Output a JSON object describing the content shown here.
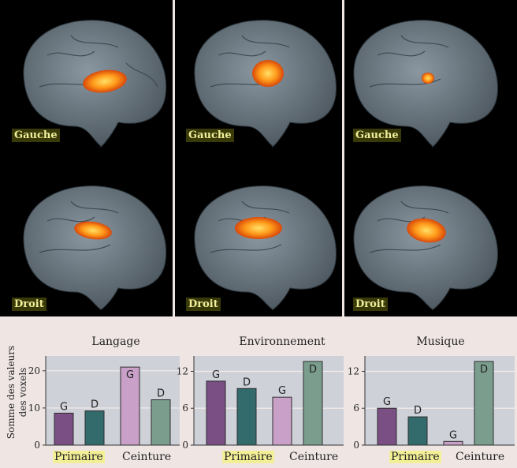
{
  "panels": [
    {
      "column": "1",
      "top_label": "Gauche",
      "bottom_label": "Droit"
    },
    {
      "column": "2",
      "top_label": "Gauche",
      "bottom_label": "Droit"
    },
    {
      "column": "3",
      "top_label": "Gauche",
      "bottom_label": "Droit"
    }
  ],
  "y_axis_label_line1": "Somme des valeurs",
  "y_axis_label_line2": "des voxels",
  "chart_data": [
    {
      "type": "bar",
      "title": "Langage",
      "ylabel": "Somme des valeurs des voxels",
      "ylim": [
        0,
        24
      ],
      "yticks": [
        0,
        10,
        20
      ],
      "group_labels": [
        "Primaire",
        "Ceinture"
      ],
      "bars": [
        {
          "group": "Primaire",
          "hemisphere": "G",
          "value": 8.6,
          "color": "#7a4f84"
        },
        {
          "group": "Primaire",
          "hemisphere": "D",
          "value": 9.2,
          "color": "#336b6c"
        },
        {
          "group": "Ceinture",
          "hemisphere": "G",
          "value": 21.0,
          "color": "#c9a0c8"
        },
        {
          "group": "Ceinture",
          "hemisphere": "D",
          "value": 12.2,
          "color": "#7a9d8d"
        }
      ]
    },
    {
      "type": "bar",
      "title": "Environnement",
      "ylabel": "Somme des valeurs des voxels",
      "ylim": [
        0,
        14.5
      ],
      "yticks": [
        0,
        6,
        12
      ],
      "group_labels": [
        "Primaire",
        "Ceinture"
      ],
      "bars": [
        {
          "group": "Primaire",
          "hemisphere": "G",
          "value": 10.4,
          "color": "#7a4f84"
        },
        {
          "group": "Primaire",
          "hemisphere": "D",
          "value": 9.2,
          "color": "#336b6c"
        },
        {
          "group": "Ceinture",
          "hemisphere": "G",
          "value": 7.8,
          "color": "#c9a0c8"
        },
        {
          "group": "Ceinture",
          "hemisphere": "D",
          "value": 13.6,
          "color": "#7a9d8d"
        }
      ]
    },
    {
      "type": "bar",
      "title": "Musique",
      "ylabel": "Somme des valeurs des voxels",
      "ylim": [
        0,
        14.5
      ],
      "yticks": [
        0,
        6,
        12
      ],
      "group_labels": [
        "Primaire",
        "Ceinture"
      ],
      "bars": [
        {
          "group": "Primaire",
          "hemisphere": "G",
          "value": 6.0,
          "color": "#7a4f84"
        },
        {
          "group": "Primaire",
          "hemisphere": "D",
          "value": 4.6,
          "color": "#336b6c"
        },
        {
          "group": "Ceinture",
          "hemisphere": "G",
          "value": 0.6,
          "color": "#c9a0c8"
        },
        {
          "group": "Ceinture",
          "hemisphere": "D",
          "value": 13.6,
          "color": "#7a9d8d"
        }
      ]
    }
  ]
}
